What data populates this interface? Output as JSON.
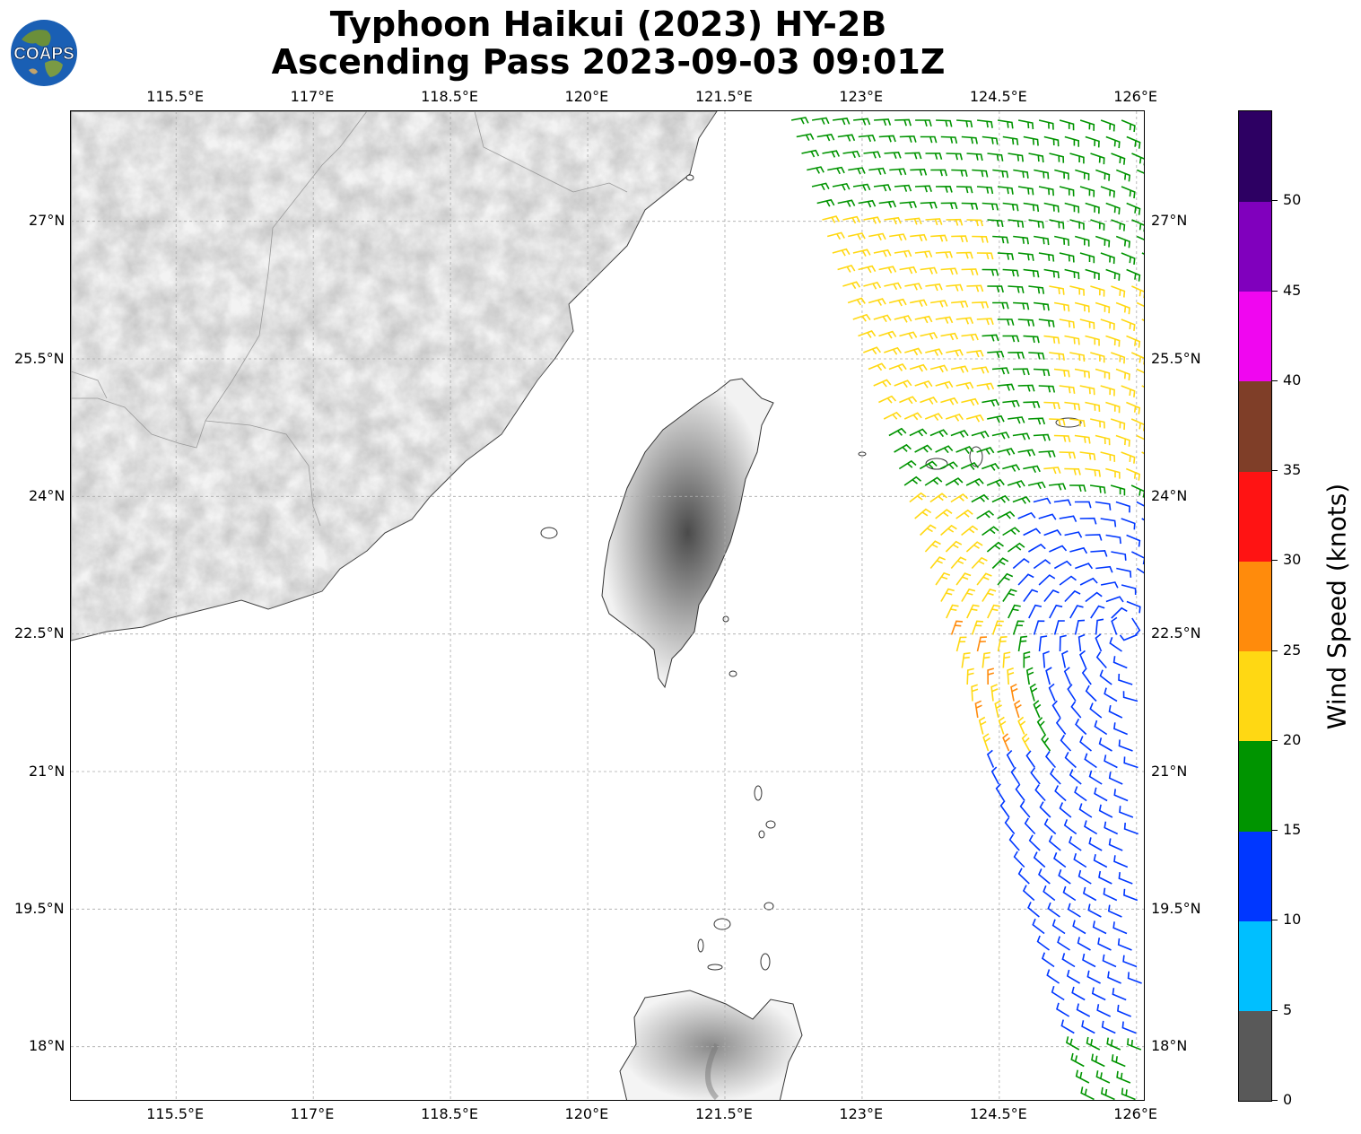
{
  "title": {
    "line1": "Typhoon Haikui (2023) HY-2B",
    "line2": "Ascending Pass 2023-09-03 09:01Z"
  },
  "logo": {
    "text": "COAPS",
    "icon": "globe-logo-icon"
  },
  "map": {
    "extent_lon": [
      114.35,
      126.1
    ],
    "extent_lat": [
      17.4,
      28.2
    ],
    "lon_ticks": [
      "115.5°E",
      "117°E",
      "118.5°E",
      "120°E",
      "121.5°E",
      "123°E",
      "124.5°E",
      "126°E"
    ],
    "lon_values": [
      115.5,
      117,
      118.5,
      120,
      121.5,
      123,
      124.5,
      126
    ],
    "lat_ticks": [
      "18°N",
      "19.5°N",
      "21°N",
      "22.5°N",
      "24°N",
      "25.5°N",
      "27°N"
    ],
    "lat_values": [
      18,
      19.5,
      21,
      22.5,
      24,
      25.5,
      27
    ],
    "gridlines": true,
    "land_shading": "grayscale terrain"
  },
  "colorbar": {
    "label": "Wind Speed (knots)",
    "ticks": [
      "0",
      "5",
      "10",
      "15",
      "20",
      "25",
      "30",
      "35",
      "40",
      "45",
      "50"
    ],
    "bins": [
      {
        "min": 0,
        "max": 5,
        "color": "#595959"
      },
      {
        "min": 5,
        "max": 10,
        "color": "#00bfff"
      },
      {
        "min": 10,
        "max": 15,
        "color": "#0037ff"
      },
      {
        "min": 15,
        "max": 20,
        "color": "#009400"
      },
      {
        "min": 20,
        "max": 25,
        "color": "#ffd813"
      },
      {
        "min": 25,
        "max": 30,
        "color": "#ff8b0c"
      },
      {
        "min": 30,
        "max": 35,
        "color": "#ff1313"
      },
      {
        "min": 35,
        "max": 40,
        "color": "#7f3e28"
      },
      {
        "min": 40,
        "max": 45,
        "color": "#f006f0"
      },
      {
        "min": 45,
        "max": 50,
        "color": "#8000bd"
      },
      {
        "min": 50,
        "max": 55,
        "color": "#2d0063"
      }
    ]
  }
}
